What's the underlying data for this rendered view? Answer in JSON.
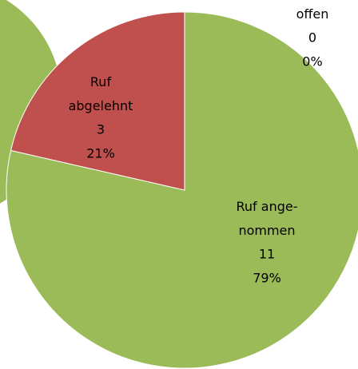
{
  "chart_data": {
    "type": "pie",
    "categories": [
      "offen",
      "Ruf ange-\nnommen",
      "Ruf\nabgelehnt"
    ],
    "values": [
      0,
      11,
      3
    ],
    "percent_labels": [
      "0%",
      "79%",
      "21%"
    ],
    "colors": [
      "#4f81bd",
      "#9bbb59",
      "#c0504d"
    ]
  }
}
